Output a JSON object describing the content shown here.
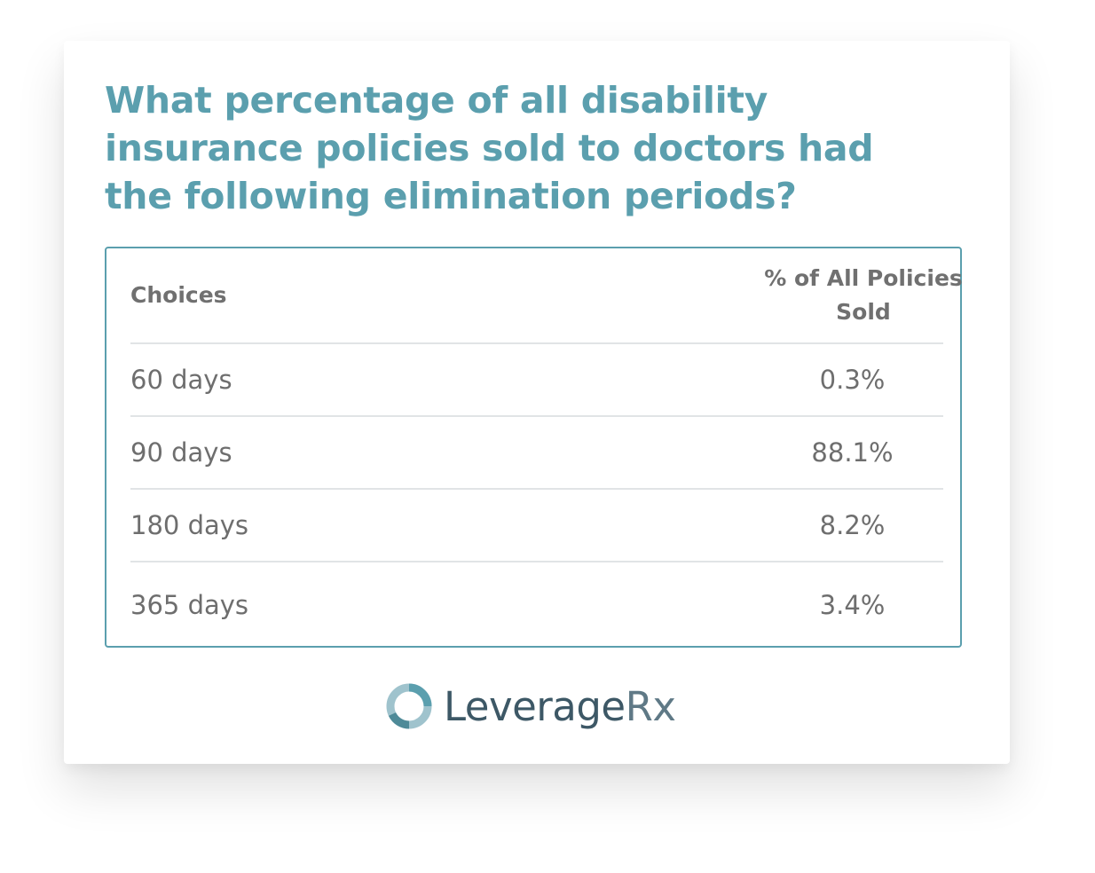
{
  "chart_data": {
    "type": "table",
    "title": "What percentage of all disability insurance policies sold to doctors had the following elimination periods?",
    "columns": [
      "Choices",
      "% of All Policies Sold"
    ],
    "rows": [
      {
        "choice": "60 days",
        "value": "0.3%"
      },
      {
        "choice": "90 days",
        "value": "88.1%"
      },
      {
        "choice": "180 days",
        "value": "8.2%"
      },
      {
        "choice": "365 days",
        "value": "3.4%"
      }
    ],
    "values": [
      0.3,
      88.1,
      8.2,
      3.4
    ]
  },
  "brand": {
    "name_main": "Leverage",
    "name_suffix": "Rx",
    "logo_icon": "ring-icon"
  },
  "colors": {
    "accent": "#5b9fae",
    "text": "#6e6e6e",
    "logo_dark": "#3d5866"
  }
}
